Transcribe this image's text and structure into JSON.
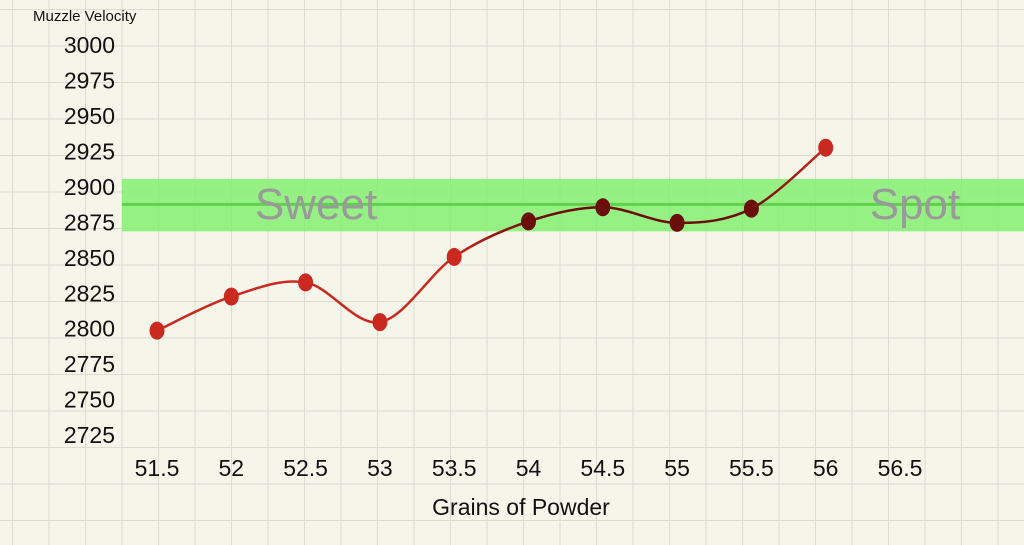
{
  "chart_data": {
    "type": "line",
    "title": "Muzzle Velocity",
    "x_label": "Grains of Powder",
    "x": [
      51.5,
      52,
      52.5,
      53,
      53.5,
      54,
      54.5,
      55,
      55.5,
      56
    ],
    "series": [
      {
        "name": "Muzzle Velocity",
        "color": "#c9291f",
        "values": [
          2800,
          2824,
          2834,
          2806,
          2852,
          2877,
          2887,
          2876,
          2886,
          2929
        ],
        "point_colors": [
          "#c9291f",
          "#c9291f",
          "#c9291f",
          "#c9291f",
          "#c9291f",
          "#6b0d09",
          "#6b0d09",
          "#6b0d09",
          "#6b0d09",
          "#c9291f"
        ]
      }
    ],
    "xlim": [
      51.5,
      56.5
    ],
    "xticks": [
      51.5,
      52,
      52.5,
      53,
      53.5,
      54,
      54.5,
      55,
      55.5,
      56,
      56.5
    ],
    "ylim": [
      2725,
      3000
    ],
    "yticks": [
      2725,
      2750,
      2775,
      2800,
      2825,
      2850,
      2875,
      2900,
      2925,
      2950,
      2975,
      3000
    ],
    "sweet_spot": {
      "range": [
        2870,
        2907
      ],
      "center": 2889,
      "color": "#7ef06a",
      "labels": [
        "Sweet",
        "Spot"
      ]
    }
  }
}
